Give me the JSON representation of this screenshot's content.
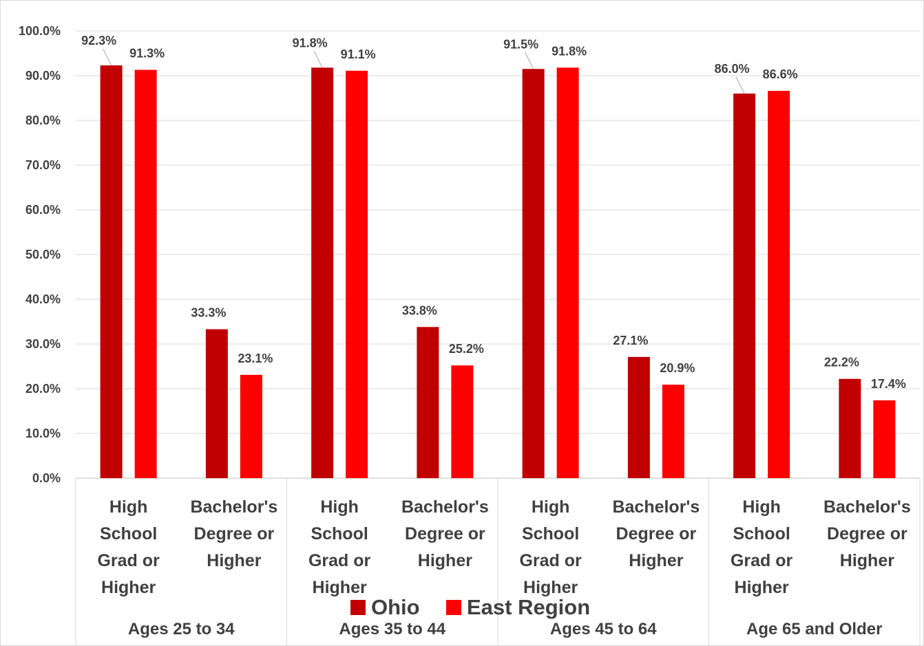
{
  "chart_data": {
    "type": "bar",
    "categories": [
      "High School Grad or Higher",
      "Bachelor's Degree or Higher",
      "High School Grad or Higher",
      "Bachelor's Degree or Higher",
      "High School Grad or Higher",
      "Bachelor's Degree or Higher",
      "High School Grad or Higher",
      "Bachelor's Degree or Higher"
    ],
    "category_lines": [
      [
        "High",
        "School",
        "Grad or",
        "Higher"
      ],
      [
        "Bachelor's",
        "Degree or",
        "Higher"
      ],
      [
        "High",
        "School",
        "Grad or",
        "Higher"
      ],
      [
        "Bachelor's",
        "Degree or",
        "Higher"
      ],
      [
        "High",
        "School",
        "Grad or",
        "Higher"
      ],
      [
        "Bachelor's",
        "Degree or",
        "Higher"
      ],
      [
        "High",
        "School",
        "Grad or",
        "Higher"
      ],
      [
        "Bachelor's",
        "Degree or",
        "Higher"
      ]
    ],
    "groups": [
      "Ages 25 to 34",
      "Ages 35 to 44",
      "Ages 45 to 64",
      "Age 65 and Older"
    ],
    "series": [
      {
        "name": "Ohio",
        "color": "#C00000",
        "values": [
          92.3,
          33.3,
          91.8,
          33.8,
          91.5,
          27.1,
          86.0,
          22.2
        ]
      },
      {
        "name": "East Region",
        "color": "#FF0000",
        "values": [
          91.3,
          23.1,
          91.1,
          25.2,
          91.8,
          20.9,
          86.6,
          17.4
        ]
      }
    ],
    "data_labels": {
      "Ohio": [
        "92.3%",
        "33.3%",
        "91.8%",
        "33.8%",
        "91.5%",
        "27.1%",
        "86.0%",
        "22.2%"
      ],
      "East Region": [
        "91.3%",
        "23.1%",
        "91.1%",
        "25.2%",
        "91.8%",
        "20.9%",
        "86.6%",
        "17.4%"
      ]
    },
    "y_ticks": [
      0,
      10,
      20,
      30,
      40,
      50,
      60,
      70,
      80,
      90,
      100
    ],
    "y_tick_labels": [
      "0.0%",
      "10.0%",
      "20.0%",
      "30.0%",
      "40.0%",
      "50.0%",
      "60.0%",
      "70.0%",
      "80.0%",
      "90.0%",
      "100.0%"
    ],
    "ylim": [
      0,
      100
    ],
    "title": "",
    "xlabel": "",
    "ylabel": "",
    "grid": true,
    "legend_position": "bottom"
  }
}
